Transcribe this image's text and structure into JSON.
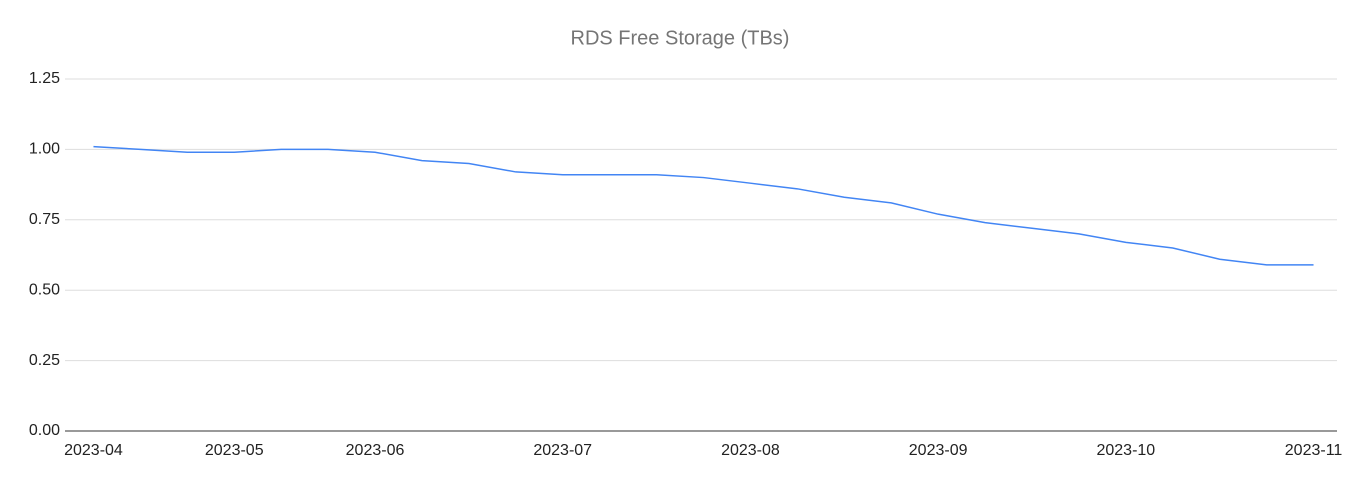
{
  "chart_data": {
    "type": "line",
    "title": "RDS Free Storage (TBs)",
    "categories": [
      "2023-04",
      null,
      null,
      "2023-05",
      null,
      null,
      "2023-06",
      null,
      null,
      null,
      "2023-07",
      null,
      null,
      null,
      "2023-08",
      null,
      null,
      null,
      "2023-09",
      null,
      null,
      null,
      "2023-10",
      null,
      null,
      null,
      "2023-11"
    ],
    "series": [
      {
        "name": "RDS Free Storage",
        "color": "#4285f4",
        "values": [
          1.01,
          1.0,
          0.99,
          0.99,
          1.0,
          1.0,
          0.99,
          0.96,
          0.95,
          0.92,
          0.91,
          0.91,
          0.91,
          0.9,
          0.88,
          0.86,
          0.83,
          0.81,
          0.77,
          0.74,
          0.72,
          0.7,
          0.67,
          0.65,
          0.61,
          0.59,
          0.59
        ]
      }
    ],
    "ylim": [
      0,
      1.25
    ],
    "yticks": [
      {
        "value": 0,
        "label": "0.00"
      },
      {
        "value": 0.25,
        "label": "0.25"
      },
      {
        "value": 0.5,
        "label": "0.50"
      },
      {
        "value": 0.75,
        "label": "0.75"
      },
      {
        "value": 1,
        "label": "1.00"
      },
      {
        "value": 1.25,
        "label": "1.25"
      }
    ],
    "grid": true
  }
}
